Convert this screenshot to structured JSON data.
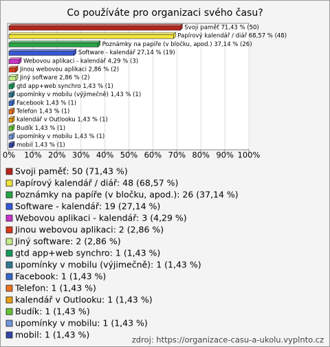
{
  "chart_data": {
    "type": "hbar",
    "title": "Co používáte pro organizaci svého času?",
    "categories": [
      "Svoji paměť",
      "Papírový kalendář / diář",
      "Poznámky na papíře (v bločku, apod.)",
      "Software - kalendář",
      "Webovou aplikaci - kalendář",
      "Jinou webovou aplikaci",
      "Jiný software",
      "gtd app+web synchro",
      "upomínky v mobilu (výjimečně)",
      "Facebook",
      "Telefon",
      "kalendář v Outlooku",
      "Budík",
      "upomínky v mobilu",
      "mobil"
    ],
    "values": [
      71.43,
      68.57,
      37.14,
      27.14,
      4.29,
      2.86,
      2.86,
      1.43,
      1.43,
      1.43,
      1.43,
      1.43,
      1.43,
      1.43,
      1.43
    ],
    "value_labels": [
      "Svoji paměť 71,43 % (50)",
      "Papírový kalendář / diář 68,57 % (48)",
      "Poznámky na papíře (v bločku, apod.) 37,14 % (26)",
      "Software - kalendář 27,14 % (19)",
      "Webovou aplikaci - kalendář 4,29 % (3)",
      "Jinou webovou aplikaci 2,86 % (2)",
      "Jiný software 2,86 % (2)",
      "gtd app+web synchro 1,43 % (1)",
      "upomínky v mobilu (výjimečně) 1,43 % (1)",
      "Facebook 1,43 % (1)",
      "Telefon 1,43 % (1)",
      "kalendář v Outlooku 1,43 % (1)",
      "Budík 1,43 % (1)",
      "upomínky v mobilu 1,43 % (1)",
      "mobil 1,43 % (1)"
    ],
    "legend_labels": [
      "Svoji paměť: 50 (71,43 %)",
      "Papírový kalendář / diář: 48 (68,57 %)",
      "Poznámky na papíře (v bločku, apod.): 26 (37,14 %)",
      "Software - kalendář: 19 (27,14 %)",
      "Webovou aplikaci - kalendář: 3 (4,29 %)",
      "Jinou webovou aplikaci: 2 (2,86 %)",
      "Jiný software: 2 (2,86 %)",
      "gtd app+web synchro: 1 (1,43 %)",
      "upomínky v mobilu (výjimečně): 1 (1,43 %)",
      "Facebook: 1 (1,43 %)",
      "Telefon: 1 (1,43 %)",
      "kalendář v Outlooku: 1 (1,43 %)",
      "Budík: 1 (1,43 %)",
      "upomínky v mobilu: 1 (1,43 %)",
      "mobil: 1 (1,43 %)"
    ],
    "colors": [
      "#b8261c",
      "#f2e43a",
      "#26a644",
      "#3657d8",
      "#c834c8",
      "#d93a1a",
      "#c8ec8a",
      "#149a5a",
      "#2f7890",
      "#3468c8",
      "#ec7424",
      "#eca014",
      "#66c636",
      "#7496dc",
      "#3446a8"
    ],
    "xlim": [
      0,
      100
    ],
    "xticks": [
      {
        "value": 0,
        "label": "0%"
      },
      {
        "value": 10,
        "label": "10%"
      },
      {
        "value": 20,
        "label": "20%"
      },
      {
        "value": 30,
        "label": "30%"
      },
      {
        "value": 40,
        "label": "40%"
      },
      {
        "value": 50,
        "label": "50%"
      },
      {
        "value": 60,
        "label": "60%"
      },
      {
        "value": 70,
        "label": "70%"
      },
      {
        "value": 80,
        "label": "80%"
      },
      {
        "value": 90,
        "label": "90%"
      },
      {
        "value": 100,
        "label": "100%"
      }
    ],
    "grid": true,
    "source": "zdroj: https://organizace-casu-a-ukolu.vyplnto.cz"
  }
}
